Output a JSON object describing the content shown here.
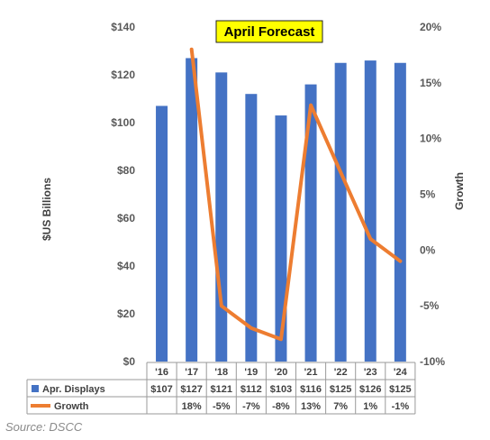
{
  "chart_data": {
    "type": "bar",
    "title": "April Forecast",
    "categories": [
      "'16",
      "'17",
      "'18",
      "'19",
      "'20",
      "'21",
      "'22",
      "'23",
      "'24"
    ],
    "series": [
      {
        "name": "Apr. Displays",
        "kind": "bar",
        "axis": "left",
        "color": "#4472C4",
        "values": [
          107,
          127,
          121,
          112,
          103,
          116,
          125,
          126,
          125
        ],
        "labels": [
          "$107",
          "$127",
          "$121",
          "$112",
          "$103",
          "$116",
          "$125",
          "$126",
          "$125"
        ]
      },
      {
        "name": "Growth",
        "kind": "line",
        "axis": "right",
        "color": "#ED7D31",
        "values": [
          null,
          18,
          -5,
          -7,
          -8,
          13,
          7,
          1,
          -1
        ],
        "labels": [
          "",
          "18%",
          "-5%",
          "-7%",
          "-8%",
          "13%",
          "7%",
          "1%",
          "-1%"
        ]
      }
    ],
    "ylabel": "$US Billions",
    "y2label": "Growth",
    "ylim": [
      0,
      140
    ],
    "y2lim": [
      -10,
      20
    ],
    "yticks": [
      "$0",
      "$20",
      "$40",
      "$60",
      "$80",
      "$100",
      "$120",
      "$140"
    ],
    "y2ticks": [
      "-10%",
      "-5%",
      "0%",
      "5%",
      "10%",
      "15%",
      "20%"
    ],
    "grid": false,
    "legend": "data-table",
    "title_box_color": "#FFFF00"
  },
  "source": "Source: DSCC"
}
